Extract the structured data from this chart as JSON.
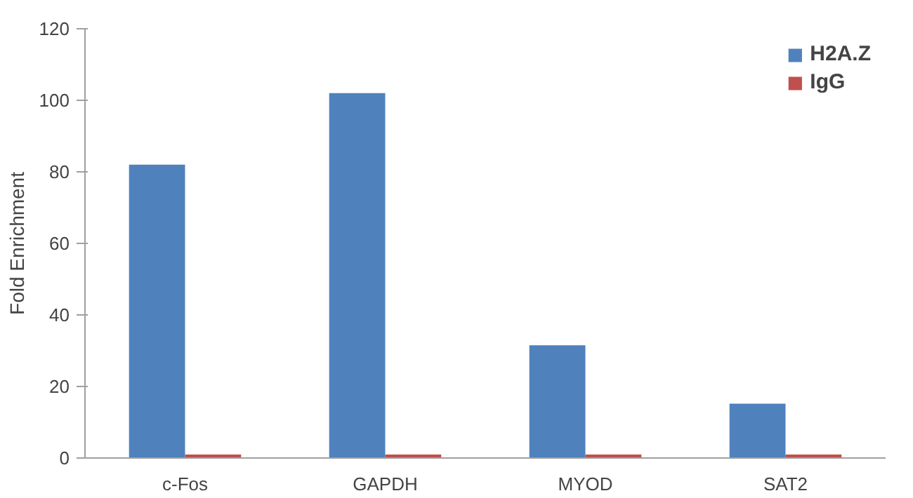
{
  "chart_data": {
    "type": "bar",
    "ylabel": "Fold Enrichment",
    "categories": [
      "c-Fos",
      "GAPDH",
      "MYOD",
      "SAT2"
    ],
    "series": [
      {
        "name": "H2A.Z",
        "color": "#4f81bd",
        "values": [
          82,
          102,
          31.5,
          15.2
        ]
      },
      {
        "name": "IgG",
        "color": "#c0504d",
        "values": [
          1,
          1,
          1,
          1
        ]
      }
    ],
    "ylim": [
      0,
      120
    ],
    "yticks": [
      0,
      20,
      40,
      60,
      80,
      100,
      120
    ],
    "grid": false,
    "legend": "top right"
  }
}
